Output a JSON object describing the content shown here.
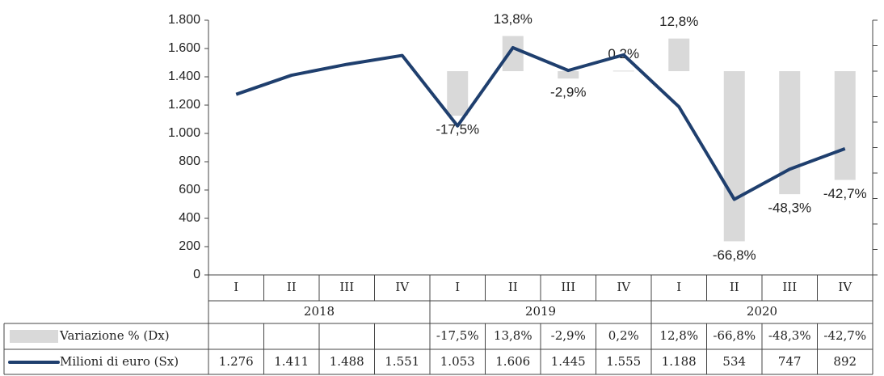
{
  "chart_data": {
    "type": "combo",
    "categories": [
      "I",
      "II",
      "III",
      "IV",
      "I",
      "II",
      "III",
      "IV",
      "I",
      "II",
      "III",
      "IV"
    ],
    "groups": [
      "2018",
      "2019",
      "2020"
    ],
    "ylim": [
      0,
      1800
    ],
    "yticks": [
      0,
      200,
      400,
      600,
      800,
      {
        "value": 1000,
        "label": "1.000"
      },
      {
        "value": 1200,
        "label": "1.200"
      },
      {
        "value": 1400,
        "label": "1.400"
      },
      {
        "value": 1600,
        "label": "1.600"
      },
      {
        "value": 1800,
        "label": "1.800"
      }
    ],
    "y2lim": [
      -80,
      20
    ],
    "y2ticks": [
      -80,
      -70,
      -60,
      -50,
      -40,
      -30,
      -20,
      -10,
      0,
      10,
      20
    ],
    "series": [
      {
        "name": "Variazione % (Dx)",
        "type": "bar",
        "axis": "y2",
        "color": "#d9d9d9",
        "values": [
          null,
          null,
          null,
          null,
          -17.5,
          13.8,
          -2.9,
          0.2,
          12.8,
          -66.8,
          -48.3,
          -42.7
        ],
        "value_labels": [
          null,
          null,
          null,
          null,
          "-17,5%",
          "13,8%",
          "-2,9%",
          "0.2%",
          "12,8%",
          "-66,8%",
          "-48,3%",
          "-42,7%"
        ],
        "table_labels": [
          null,
          null,
          null,
          null,
          "-17,5%",
          "13,8%",
          "-2,9%",
          "0,2%",
          "12,8%",
          "-66,8%",
          "-48,3%",
          "-42,7%"
        ]
      },
      {
        "name": "Milioni di euro (Sx)",
        "type": "line",
        "axis": "y",
        "color": "#1f3f6e",
        "values": [
          1276,
          1411,
          1488,
          1551,
          1053,
          1606,
          1445,
          1555,
          1188,
          534,
          747,
          892
        ],
        "table_labels": [
          "1.276",
          "1.411",
          "1.488",
          "1.551",
          "1.053",
          "1.606",
          "1.445",
          "1.555",
          "1.188",
          "534",
          "747",
          "892"
        ]
      }
    ]
  }
}
